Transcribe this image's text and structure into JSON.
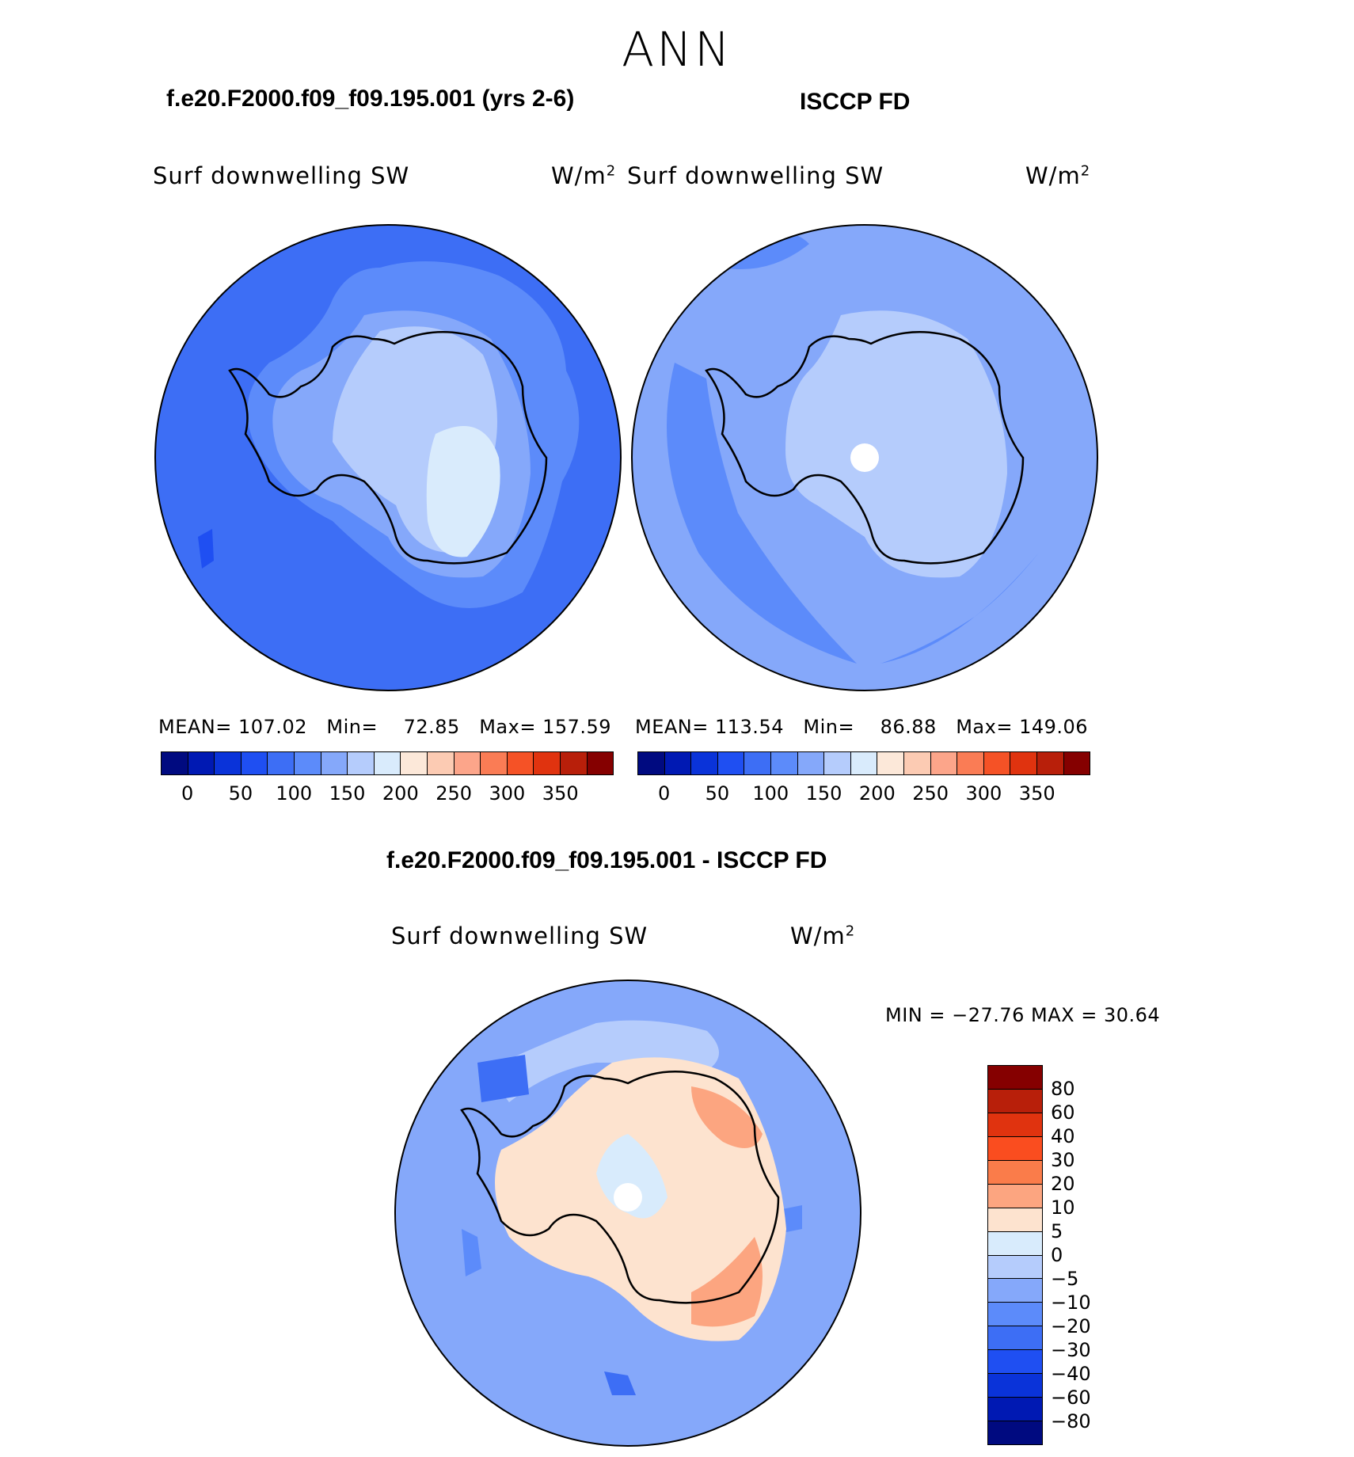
{
  "season": "ANN",
  "panel_left": {
    "title": "f.e20.F2000.f09_f09.195.001 (yrs 2-6)",
    "variable": "Surf downwelling SW",
    "units": "W/m",
    "units_sup": "2",
    "stats": {
      "mean_label": "MEAN=",
      "mean": "107.02",
      "min_label": "Min=",
      "min": "72.85",
      "max_label": "Max=",
      "max": "157.59"
    }
  },
  "panel_right": {
    "title": "ISCCP FD",
    "variable": "Surf downwelling SW",
    "units": "W/m",
    "units_sup": "2",
    "stats": {
      "mean_label": "MEAN=",
      "mean": "113.54",
      "min_label": "Min=",
      "min": "86.88",
      "max_label": "Max=",
      "max": "149.06"
    }
  },
  "panel_diff": {
    "title": "f.e20.F2000.f09_f09.195.001 - ISCCP FD",
    "variable": "Surf downwelling SW",
    "units": "W/m",
    "units_sup": "2",
    "minmax_text": "MIN = −27.76 MAX =   30.64"
  },
  "colorbar_main": {
    "ticks": [
      "0",
      "50",
      "100",
      "150",
      "200",
      "250",
      "300",
      "350"
    ],
    "colors": [
      "#000a80",
      "#0019b3",
      "#0a33d9",
      "#1f4ff2",
      "#3d6ef5",
      "#5c8bfa",
      "#85a8fa",
      "#b5ccfc",
      "#d9ebfc",
      "#fce8d9",
      "#fccbb3",
      "#fca58a",
      "#fa7c55",
      "#f55226",
      "#e0330f",
      "#b81f0a",
      "#850000"
    ]
  },
  "colorbar_diff": {
    "ticks": [
      "80",
      "60",
      "40",
      "30",
      "20",
      "10",
      "5",
      "0",
      "−5",
      "−10",
      "−20",
      "−30",
      "−40",
      "−60",
      "−80"
    ],
    "colors": [
      "#850000",
      "#b81f0a",
      "#e0330f",
      "#fa4d1f",
      "#fa7c4a",
      "#fca580",
      "#fde3cf",
      "#d8ebfc",
      "#b5ccfc",
      "#85a8fa",
      "#5c8bfa",
      "#3d6ef5",
      "#1f4ff2",
      "#0a33d9",
      "#0019b3",
      "#000a80"
    ]
  },
  "map_colors": {
    "ocean_model": "#3d6ef5",
    "ocean_obs": "#85a8fa",
    "ice_model": "#85a8fa",
    "ice_high_model": "#b5ccfc",
    "ice_peak_model": "#d9ebfc",
    "ice_obs": "#b5ccfc",
    "diff_ocean": "#85a8fa",
    "diff_ice": "#fde3cf",
    "diff_ice_warm": "#fca580",
    "diff_ice_hot": "#fa7c4a",
    "missing": "#ffffff"
  }
}
